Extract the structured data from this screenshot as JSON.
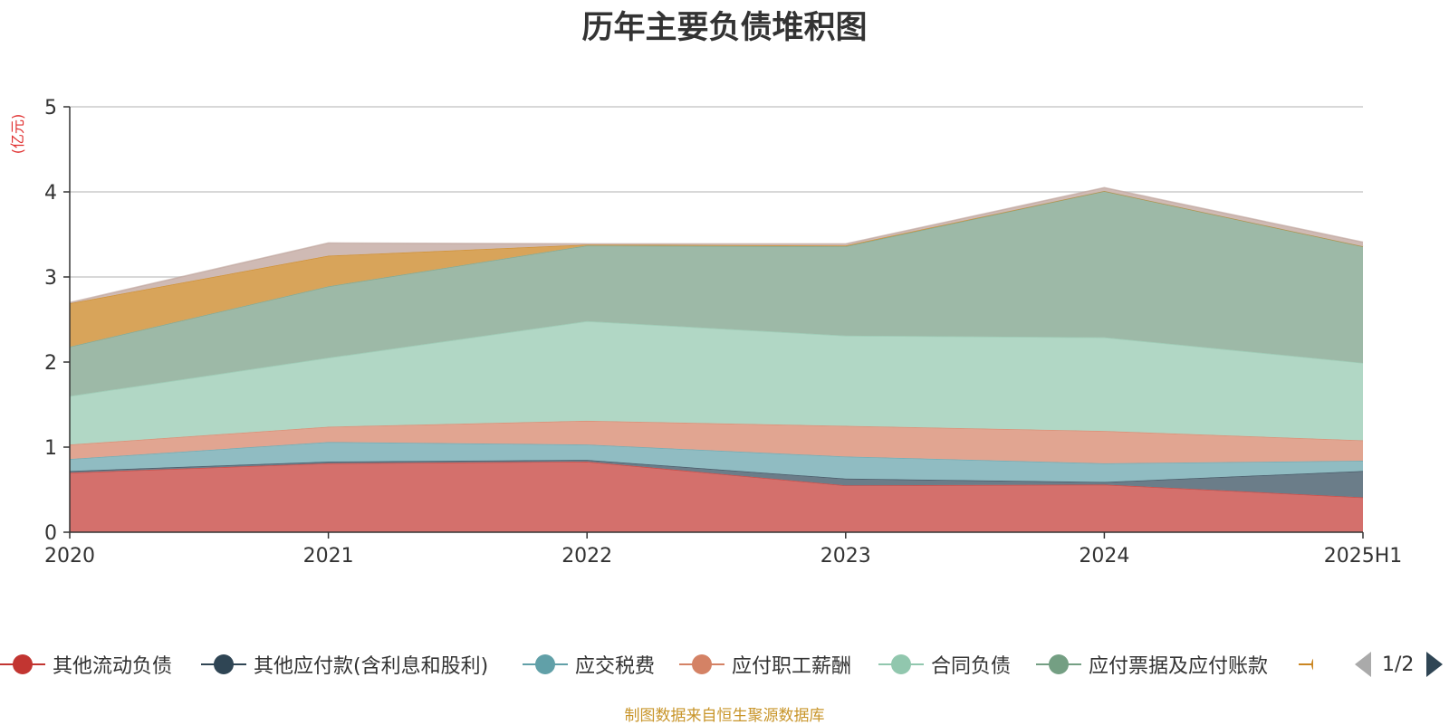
{
  "chart_data": {
    "type": "area",
    "stacked": true,
    "title": "历年主要负债堆积图",
    "unit_label": "(亿元)",
    "categories": [
      "2020",
      "2021",
      "2022",
      "2023",
      "2024",
      "2025H1"
    ],
    "ylim": [
      0,
      5
    ],
    "yticks": [
      "0",
      "1",
      "2",
      "3",
      "4",
      "5"
    ],
    "grid": true,
    "series": [
      {
        "name": "其他流动负债",
        "color": "#c23531",
        "fill": "#d4706c",
        "values": [
          0.7,
          0.81,
          0.83,
          0.55,
          0.56,
          0.41
        ]
      },
      {
        "name": "其他应付款(含利息和股利)",
        "color": "#2f4554",
        "fill": "#6b7d89",
        "values": [
          0.02,
          0.02,
          0.02,
          0.08,
          0.03,
          0.31
        ]
      },
      {
        "name": "应交税费",
        "color": "#61a0a8",
        "fill": "#90bcc2",
        "values": [
          0.14,
          0.23,
          0.18,
          0.26,
          0.22,
          0.12
        ]
      },
      {
        "name": "应付职工薪酬",
        "color": "#d48265",
        "fill": "#e1a591",
        "values": [
          0.17,
          0.18,
          0.28,
          0.36,
          0.38,
          0.24
        ]
      },
      {
        "name": "合同负债",
        "color": "#91c7ae",
        "fill": "#b1d7c5",
        "values": [
          0.57,
          0.81,
          1.17,
          1.06,
          1.1,
          0.91
        ]
      },
      {
        "name": "应付票据及应付账款",
        "color": "#749f83",
        "fill": "#9db9a7",
        "values": [
          0.58,
          0.84,
          0.89,
          1.05,
          1.72,
          1.37
        ]
      },
      {
        "name": "",
        "color": "#ca8622",
        "fill": "#d8a45a",
        "values": [
          0.51,
          0.36,
          0.01,
          0.01,
          0.0,
          0.0
        ]
      },
      {
        "name": "",
        "color": "#bda29a",
        "fill": "#cfbab4",
        "values": [
          0.01,
          0.15,
          0.01,
          0.02,
          0.04,
          0.05
        ]
      }
    ]
  },
  "legend": {
    "items": [
      {
        "label": "其他流动负债",
        "color": "#c23531"
      },
      {
        "label": "其他应付款(含利息和股利)",
        "color": "#2f4554"
      },
      {
        "label": "应交税费",
        "color": "#61a0a8"
      },
      {
        "label": "应付职工薪酬",
        "color": "#d48265"
      },
      {
        "label": "合同负债",
        "color": "#91c7ae"
      },
      {
        "label": "应付票据及应付账款",
        "color": "#749f83"
      }
    ],
    "page_indicator": "1/2"
  },
  "source_note": "制图数据来自恒生聚源数据库"
}
